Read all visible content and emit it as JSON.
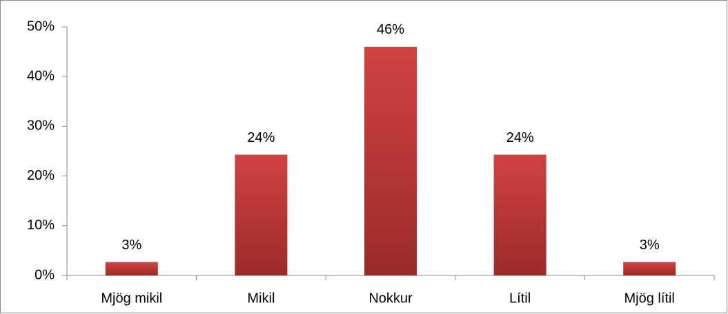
{
  "chart_data": {
    "type": "bar",
    "categories": [
      "Mjög mikil",
      "Mikil",
      "Nokkur",
      "Lítil",
      "Mjög lítil"
    ],
    "values": [
      2.7,
      24.3,
      46,
      24.3,
      2.7
    ],
    "value_labels": [
      "3%",
      "24%",
      "46%",
      "24%",
      "3%"
    ],
    "color": "#d04341",
    "ylim": [
      0,
      50
    ],
    "yticks": [
      {
        "value": 0,
        "label": "0%"
      },
      {
        "value": 10,
        "label": "10%"
      },
      {
        "value": 20,
        "label": "20%"
      },
      {
        "value": 30,
        "label": "30%"
      },
      {
        "value": 40,
        "label": "40%"
      },
      {
        "value": 50,
        "label": "50%"
      }
    ],
    "grid": false
  }
}
